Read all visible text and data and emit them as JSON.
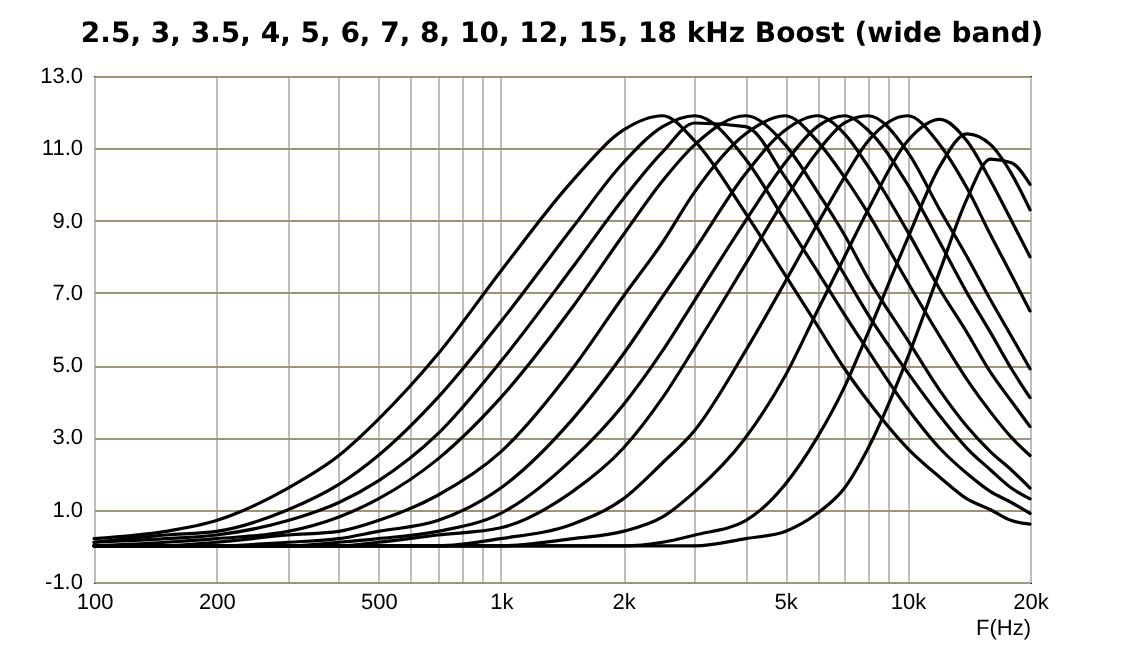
{
  "chart_data": {
    "type": "line",
    "title": "2.5, 3, 3.5, 4, 5, 6, 7, 8, 10, 12, 15, 18 kHz Boost (wide band)",
    "xlabel": "F(Hz)",
    "log": "x",
    "grid": true,
    "line_style": "solid",
    "x": [
      100,
      150,
      200,
      300,
      400,
      500,
      700,
      1000,
      1500,
      2000,
      2500,
      3000,
      4000,
      5000,
      6000,
      7000,
      8000,
      10000,
      12000,
      14000,
      16000,
      18000,
      20000
    ],
    "xlim": [
      100,
      20000
    ],
    "xticks": [
      100,
      200,
      {
        "value": 300,
        "label": null
      },
      {
        "value": 400,
        "label": null
      },
      500,
      {
        "value": 600,
        "label": null
      },
      {
        "value": 700,
        "label": null
      },
      {
        "value": 800,
        "label": null
      },
      {
        "value": 900,
        "label": null
      },
      {
        "value": 1000,
        "label": "1k"
      },
      {
        "value": 2000,
        "label": "2k"
      },
      {
        "value": 3000,
        "label": null
      },
      {
        "value": 4000,
        "label": null
      },
      {
        "value": 5000,
        "label": "5k"
      },
      {
        "value": 6000,
        "label": null
      },
      {
        "value": 7000,
        "label": null
      },
      {
        "value": 8000,
        "label": null
      },
      {
        "value": 9000,
        "label": null
      },
      {
        "value": 10000,
        "label": "10k"
      },
      {
        "value": 20000,
        "label": "20k"
      }
    ],
    "ylim": [
      -1,
      13
    ],
    "yticks": [
      {
        "value": -1,
        "label": "-1.0"
      },
      {
        "value": 1,
        "label": "1.0"
      },
      {
        "value": 3,
        "label": "3.0"
      },
      {
        "value": 5,
        "label": "5.0"
      },
      {
        "value": 7,
        "label": "7.0"
      },
      {
        "value": 9,
        "label": "9.0"
      },
      {
        "value": 11,
        "label": "11.0"
      },
      {
        "value": 13,
        "label": "13.0"
      }
    ],
    "series": [
      {
        "color": "#000000",
        "values": [
          0.2,
          0.4,
          0.7,
          1.6,
          2.5,
          3.5,
          5.3,
          7.6,
          10.1,
          11.5,
          11.9,
          11.2,
          9.2,
          7.5,
          6.1,
          4.9,
          4.0,
          2.7,
          1.9,
          1.3,
          1.0,
          0.7,
          0.6
        ]
      },
      {
        "color": "#000000",
        "values": [
          0.1,
          0.3,
          0.4,
          1.0,
          1.7,
          2.5,
          4.1,
          6.2,
          8.8,
          10.6,
          11.6,
          11.9,
          10.7,
          9.0,
          7.6,
          6.4,
          5.4,
          3.8,
          2.7,
          2.0,
          1.5,
          1.2,
          0.9
        ]
      },
      {
        "color": "#000000",
        "values": [
          0.1,
          0.2,
          0.3,
          0.7,
          1.2,
          1.8,
          3.1,
          5.1,
          7.7,
          9.6,
          10.9,
          11.7,
          11.6,
          10.2,
          8.8,
          7.5,
          6.4,
          4.8,
          3.6,
          2.7,
          2.1,
          1.6,
          1.3
        ]
      },
      {
        "color": "#000000",
        "values": [
          0.0,
          0.1,
          0.2,
          0.4,
          0.8,
          1.3,
          2.4,
          4.1,
          6.6,
          8.6,
          10.1,
          11.1,
          11.9,
          11.1,
          9.8,
          8.6,
          7.4,
          5.7,
          4.3,
          3.3,
          2.6,
          2.1,
          1.6
        ]
      },
      {
        "color": "#000000",
        "values": [
          0.0,
          0.0,
          0.1,
          0.3,
          0.4,
          0.7,
          1.4,
          2.6,
          4.9,
          6.9,
          8.4,
          9.8,
          11.4,
          11.9,
          11.2,
          10.2,
          9.2,
          7.3,
          5.8,
          4.6,
          3.7,
          3.0,
          2.5
        ]
      },
      {
        "color": "#000000",
        "values": [
          0.0,
          0.0,
          0.0,
          0.1,
          0.2,
          0.4,
          0.7,
          1.6,
          3.5,
          5.3,
          6.9,
          8.2,
          10.3,
          11.5,
          11.9,
          11.4,
          10.5,
          8.7,
          7.1,
          5.9,
          4.8,
          4.0,
          3.3
        ]
      },
      {
        "color": "#000000",
        "values": [
          0.0,
          0.0,
          0.0,
          0.0,
          0.1,
          0.2,
          0.4,
          0.9,
          2.4,
          3.9,
          5.4,
          6.8,
          9.0,
          10.6,
          11.6,
          11.9,
          11.5,
          10.0,
          8.4,
          7.0,
          5.9,
          4.9,
          4.1
        ]
      },
      {
        "color": "#000000",
        "values": [
          0.0,
          0.0,
          0.0,
          0.0,
          0.0,
          0.1,
          0.3,
          0.5,
          1.5,
          2.7,
          4.1,
          5.5,
          7.8,
          9.6,
          10.9,
          11.7,
          11.9,
          10.9,
          9.3,
          8.0,
          6.8,
          5.8,
          4.9
        ]
      },
      {
        "color": "#000000",
        "values": [
          0.0,
          0.0,
          0.0,
          0.0,
          0.0,
          0.0,
          0.0,
          0.2,
          0.6,
          1.3,
          2.3,
          3.2,
          5.4,
          7.3,
          8.9,
          10.2,
          11.2,
          11.9,
          11.1,
          9.9,
          8.6,
          7.5,
          6.5
        ]
      },
      {
        "color": "#000000",
        "values": [
          0.0,
          0.0,
          0.0,
          0.0,
          0.0,
          0.0,
          0.0,
          0.0,
          0.2,
          0.4,
          0.8,
          1.5,
          3.0,
          4.7,
          6.5,
          8.0,
          9.3,
          11.2,
          11.8,
          11.2,
          10.1,
          9.0,
          8.0
        ]
      },
      {
        "color": "#000000",
        "values": [
          0.0,
          0.0,
          0.0,
          0.0,
          0.0,
          0.0,
          0.0,
          0.0,
          0.0,
          0.0,
          0.1,
          0.3,
          0.7,
          1.7,
          3.0,
          4.4,
          5.9,
          8.5,
          10.5,
          11.4,
          11.1,
          10.3,
          9.3
        ]
      },
      {
        "color": "#000000",
        "values": [
          0.0,
          0.0,
          0.0,
          0.0,
          0.0,
          0.0,
          0.0,
          0.0,
          0.0,
          0.0,
          0.0,
          0.0,
          0.2,
          0.4,
          0.9,
          1.6,
          2.7,
          5.2,
          7.6,
          9.6,
          10.7,
          10.6,
          10.0
        ]
      }
    ]
  }
}
